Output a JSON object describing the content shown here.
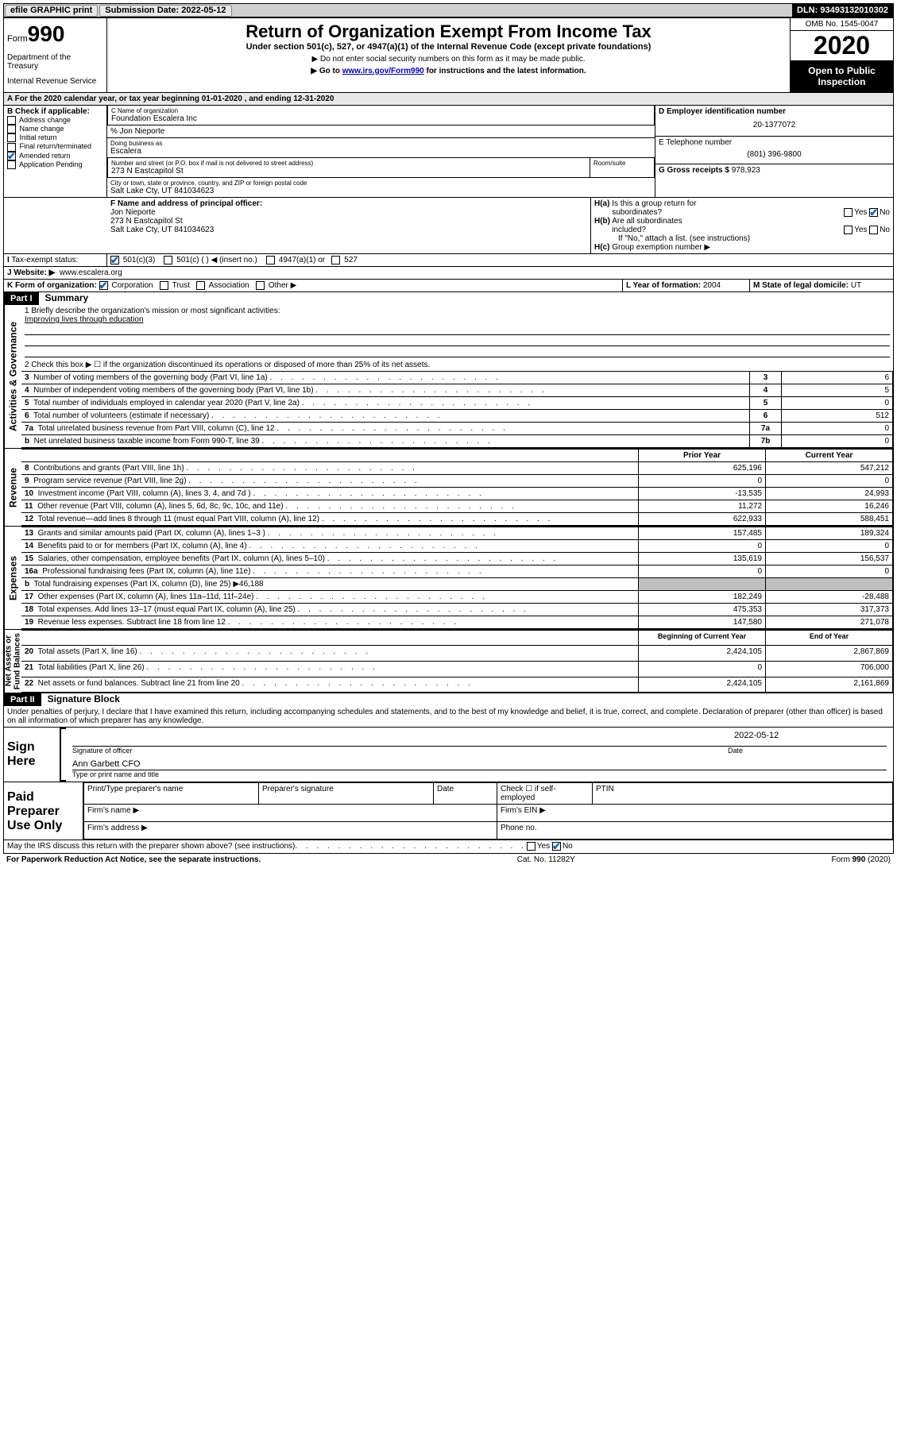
{
  "topbar": {
    "efile": "efile GRAPHIC print",
    "submission": "Submission Date: 2022-05-12",
    "dln": "DLN: 93493132010302"
  },
  "header": {
    "form_label": "Form",
    "form_num": "990",
    "dept": "Department of the Treasury",
    "irs": "Internal Revenue Service",
    "title": "Return of Organization Exempt From Income Tax",
    "subtitle": "Under section 501(c), 527, or 4947(a)(1) of the Internal Revenue Code (except private foundations)",
    "note1": "▶ Do not enter social security numbers on this form as it may be made public.",
    "note2_pre": "▶ Go to ",
    "note2_link": "www.irs.gov/Form990",
    "note2_post": " for instructions and the latest information.",
    "omb": "OMB No. 1545-0047",
    "year": "2020",
    "inspect": "Open to Public Inspection"
  },
  "sectionA": "A For the 2020 calendar year, or tax year beginning 01-01-2020    , and ending 12-31-2020",
  "boxB": {
    "label": "B Check if applicable:",
    "items": [
      "Address change",
      "Name change",
      "Initial return",
      "Final return/terminated",
      "Amended return",
      "Application Pending"
    ],
    "checked_idx": 4
  },
  "boxC": {
    "label_name": "C Name of organization",
    "name": "Foundation Escalera Inc",
    "care_of": "% Jon Nieporte",
    "dba_label": "Doing business as",
    "dba": "Escalera",
    "addr_label": "Number and street (or P.O. box if mail is not delivered to street address)",
    "room_label": "Room/suite",
    "addr": "273 N Eastcapitol St",
    "city_label": "City or town, state or province, country, and ZIP or foreign postal code",
    "city": "Salt Lake Cty, UT  841034623"
  },
  "boxD": {
    "label": "D Employer identification number",
    "value": "20-1377072"
  },
  "boxE": {
    "label": "E Telephone number",
    "value": "(801) 396-9800"
  },
  "boxG": {
    "label": "G Gross receipts $",
    "value": "978,923"
  },
  "boxF": {
    "label": "F Name and address of principal officer:",
    "name": "Jon Nieporte",
    "addr1": "273 N Eastcapitol St",
    "addr2": "Salt Lake Cty, UT  841034623"
  },
  "boxH": {
    "a_label": "H(a)  Is this a group return for subordinates?",
    "b_label": "H(b)  Are all subordinates included?",
    "note": "If \"No,\" attach a list. (see instructions)",
    "c_label": "H(c)  Group exemption number ▶",
    "yes": "Yes",
    "no": "No"
  },
  "boxI": {
    "label": "I  Tax-exempt status:",
    "opts": [
      "501(c)(3)",
      "501(c) (  ) ◀ (insert no.)",
      "4947(a)(1) or",
      "527"
    ]
  },
  "boxJ": {
    "label": "J   Website: ▶",
    "value": "www.escalera.org"
  },
  "boxK": {
    "label": "K Form of organization:",
    "opts": [
      "Corporation",
      "Trust",
      "Association",
      "Other ▶"
    ]
  },
  "boxL": {
    "label": "L Year of formation:",
    "value": "2004"
  },
  "boxM": {
    "label": "M State of legal domicile:",
    "value": "UT"
  },
  "part1": {
    "hdr": "Part I",
    "title": "Summary",
    "q1": "1   Briefly describe the organization's mission or most significant activities:",
    "mission": "Improving lives through education",
    "q2": "2   Check this box ▶ ☐  if the organization discontinued its operations or disposed of more than 25% of its net assets.",
    "rows_gov": [
      {
        "n": "3",
        "t": "Number of voting members of the governing body (Part VI, line 1a)",
        "box": "3",
        "v": "6"
      },
      {
        "n": "4",
        "t": "Number of independent voting members of the governing body (Part VI, line 1b)",
        "box": "4",
        "v": "5"
      },
      {
        "n": "5",
        "t": "Total number of individuals employed in calendar year 2020 (Part V, line 2a)",
        "box": "5",
        "v": "0"
      },
      {
        "n": "6",
        "t": "Total number of volunteers (estimate if necessary)",
        "box": "6",
        "v": "512"
      },
      {
        "n": "7a",
        "t": "Total unrelated business revenue from Part VIII, column (C), line 12",
        "box": "7a",
        "v": "0"
      },
      {
        "n": "b",
        "t": "Net unrelated business taxable income from Form 990-T, line 39",
        "box": "7b",
        "v": "0"
      }
    ],
    "col_prior": "Prior Year",
    "col_current": "Current Year",
    "rows_rev": [
      {
        "n": "8",
        "t": "Contributions and grants (Part VIII, line 1h)",
        "p": "625,196",
        "c": "547,212"
      },
      {
        "n": "9",
        "t": "Program service revenue (Part VIII, line 2g)",
        "p": "0",
        "c": "0"
      },
      {
        "n": "10",
        "t": "Investment income (Part VIII, column (A), lines 3, 4, and 7d )",
        "p": "-13,535",
        "c": "24,993"
      },
      {
        "n": "11",
        "t": "Other revenue (Part VIII, column (A), lines 5, 6d, 8c, 9c, 10c, and 11e)",
        "p": "11,272",
        "c": "16,246"
      },
      {
        "n": "12",
        "t": "Total revenue—add lines 8 through 11 (must equal Part VIII, column (A), line 12)",
        "p": "622,933",
        "c": "588,451"
      }
    ],
    "rows_exp": [
      {
        "n": "13",
        "t": "Grants and similar amounts paid (Part IX, column (A), lines 1–3 )",
        "p": "157,485",
        "c": "189,324"
      },
      {
        "n": "14",
        "t": "Benefits paid to or for members (Part IX, column (A), line 4)",
        "p": "0",
        "c": "0"
      },
      {
        "n": "15",
        "t": "Salaries, other compensation, employee benefits (Part IX, column (A), lines 5–10)",
        "p": "135,619",
        "c": "156,537"
      },
      {
        "n": "16a",
        "t": "Professional fundraising fees (Part IX, column (A), line 11e)",
        "p": "0",
        "c": "0"
      },
      {
        "n": "b",
        "t": "Total fundraising expenses (Part IX, column (D), line 25) ▶46,188",
        "p": "",
        "c": "",
        "shade": true
      },
      {
        "n": "17",
        "t": "Other expenses (Part IX, column (A), lines 11a–11d, 11f–24e)",
        "p": "182,249",
        "c": "-28,488"
      },
      {
        "n": "18",
        "t": "Total expenses. Add lines 13–17 (must equal Part IX, column (A), line 25)",
        "p": "475,353",
        "c": "317,373"
      },
      {
        "n": "19",
        "t": "Revenue less expenses. Subtract line 18 from line 12",
        "p": "147,580",
        "c": "271,078"
      }
    ],
    "col_begin": "Beginning of Current Year",
    "col_end": "End of Year",
    "rows_net": [
      {
        "n": "20",
        "t": "Total assets (Part X, line 16)",
        "p": "2,424,105",
        "c": "2,867,869"
      },
      {
        "n": "21",
        "t": "Total liabilities (Part X, line 26)",
        "p": "0",
        "c": "706,000"
      },
      {
        "n": "22",
        "t": "Net assets or fund balances. Subtract line 21 from line 20",
        "p": "2,424,105",
        "c": "2,161,869"
      }
    ]
  },
  "part2": {
    "hdr": "Part II",
    "title": "Signature Block",
    "decl": "Under penalties of perjury, I declare that I have examined this return, including accompanying schedules and statements, and to the best of my knowledge and belief, it is true, correct, and complete. Declaration of preparer (other than officer) is based on all information of which preparer has any knowledge.",
    "sign_here": "Sign Here",
    "sig_officer": "Signature of officer",
    "sig_date": "Date",
    "sig_date_val": "2022-05-12",
    "officer_name": "Ann Garbett CFO",
    "type_name": "Type or print name and title",
    "paid": "Paid Preparer Use Only",
    "prep_name": "Print/Type preparer's name",
    "prep_sig": "Preparer's signature",
    "prep_date": "Date",
    "check_self": "Check ☐ if self-employed",
    "ptin": "PTIN",
    "firm_name": "Firm's name  ▶",
    "firm_ein": "Firm's EIN ▶",
    "firm_addr": "Firm's address ▶",
    "phone": "Phone no.",
    "discuss": "May the IRS discuss this return with the preparer shown above? (see instructions)"
  },
  "footer": {
    "left": "For Paperwork Reduction Act Notice, see the separate instructions.",
    "mid": "Cat. No. 11282Y",
    "right": "Form 990 (2020)"
  }
}
